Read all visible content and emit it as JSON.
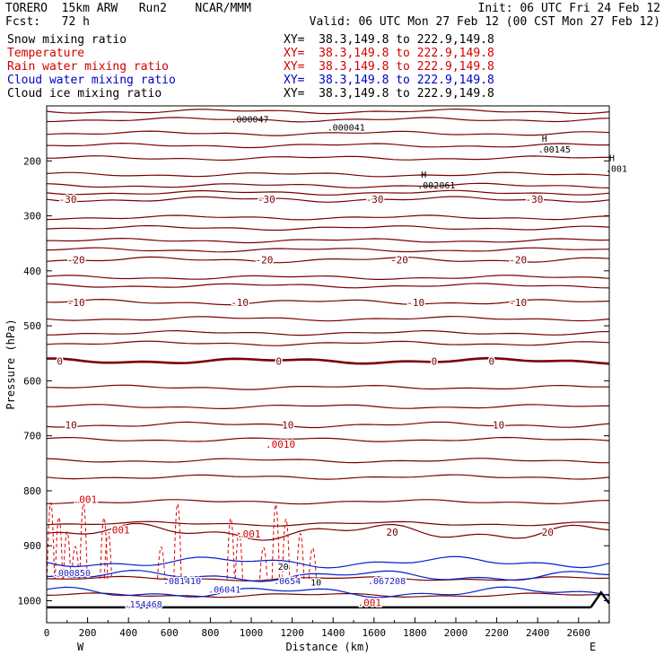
{
  "header": {
    "model": "TORERO  15km ARW   Run2    NCAR/MMM",
    "init": "Init: 06 UTC Fri 24 Feb 12",
    "fcst": "Fcst:   72 h",
    "valid": "Valid: 06 UTC Mon 27 Feb 12 (00 CST Mon 27 Feb 12)"
  },
  "legend": [
    {
      "label": "Snow mixing ratio",
      "xy": "XY=  38.3,149.8 to 222.9,149.8",
      "color": "#000000"
    },
    {
      "label": "Temperature",
      "xy": "XY=  38.3,149.8 to 222.9,149.8",
      "color": "#d40000"
    },
    {
      "label": "Rain water mixing ratio",
      "xy": "XY=  38.3,149.8 to 222.9,149.8",
      "color": "#d40000"
    },
    {
      "label": "Cloud water mixing ratio",
      "xy": "XY=  38.3,149.8 to 222.9,149.8",
      "color": "#0000c0"
    },
    {
      "label": "Cloud ice mixing ratio",
      "xy": "XY=  38.3,149.8 to 222.9,149.8",
      "color": "#000000"
    }
  ],
  "chart_data": {
    "type": "line",
    "xlabel": "Distance (km)",
    "ylabel": "Pressure (hPa)",
    "xlim": [
      0,
      2750
    ],
    "ylim": [
      1040,
      100
    ],
    "x_ticks": [
      0,
      200,
      400,
      600,
      800,
      1000,
      1200,
      1400,
      1600,
      1800,
      2000,
      2200,
      2400,
      2600
    ],
    "y_ticks": [
      200,
      300,
      400,
      500,
      600,
      700,
      800,
      900,
      1000
    ],
    "x_ends": {
      "left": "W",
      "right": "E"
    },
    "temperature_isotherms": [
      {
        "value": -30,
        "label": "-30",
        "label_x": [
          60,
          1030,
          1560,
          2340
        ],
        "pressure": 270
      },
      {
        "value": -20,
        "label": "-20",
        "label_x": [
          100,
          1020,
          1680,
          2260
        ],
        "pressure": 380
      },
      {
        "value": -10,
        "label": "-10",
        "label_x": [
          100,
          900,
          1760,
          2260
        ],
        "pressure": 457
      },
      {
        "value": 0,
        "label": "0",
        "label_x": [
          50,
          1120,
          1880,
          2160
        ],
        "pressure": 564
      },
      {
        "value": 10,
        "label": "10",
        "label_x": [
          90,
          1150,
          2180
        ],
        "pressure": 680
      },
      {
        "value": 20,
        "label": "20",
        "label_x": [
          1660,
          2420
        ],
        "pressure": 875
      }
    ],
    "temperature_contours_unlabeled": [
      110,
      125,
      150,
      172,
      195,
      225,
      245,
      258,
      303,
      322,
      345,
      362,
      412,
      427,
      487,
      513,
      532,
      612,
      647,
      707,
      745,
      775,
      820,
      860,
      960,
      990
    ],
    "cloud_ice_highs": [
      {
        "label": "H",
        "value": ".002061",
        "x": 1830,
        "p": 250
      },
      {
        "label": "H",
        "value": ".00145",
        "x": 2420,
        "p": 185
      },
      {
        "label": "H",
        "value": ".001",
        "x": 2750,
        "p": 220
      }
    ],
    "cloud_ice_labels": [
      {
        "value": ".000047",
        "x": 980,
        "p": 130
      },
      {
        "value": ".000041",
        "x": 1450,
        "p": 145
      }
    ],
    "rain_labels": [
      {
        "value": ".001",
        "x": 130,
        "p": 822
      },
      {
        "value": ".001",
        "x": 290,
        "p": 878
      },
      {
        "value": ".001",
        "x": 930,
        "p": 885
      },
      {
        "value": ".0010",
        "x": 1070,
        "p": 722
      },
      {
        "value": ".001",
        "x": 1520,
        "p": 1010
      }
    ],
    "cloud_water_labels": [
      {
        "value": ".000850",
        "x": 30,
        "p": 955
      },
      {
        "value": ".081410",
        "x": 570,
        "p": 970
      },
      {
        "value": ".06041",
        "x": 790,
        "p": 985
      },
      {
        "value": ".0654",
        "x": 1110,
        "p": 970
      },
      {
        "value": ".067208",
        "x": 1570,
        "p": 970
      },
      {
        "value": ".154468",
        "x": 380,
        "p": 1012
      }
    ],
    "snow_labels": [
      {
        "value": "20",
        "x": 1130,
        "p": 944
      },
      {
        "value": "10",
        "x": 1290,
        "p": 972
      }
    ]
  }
}
